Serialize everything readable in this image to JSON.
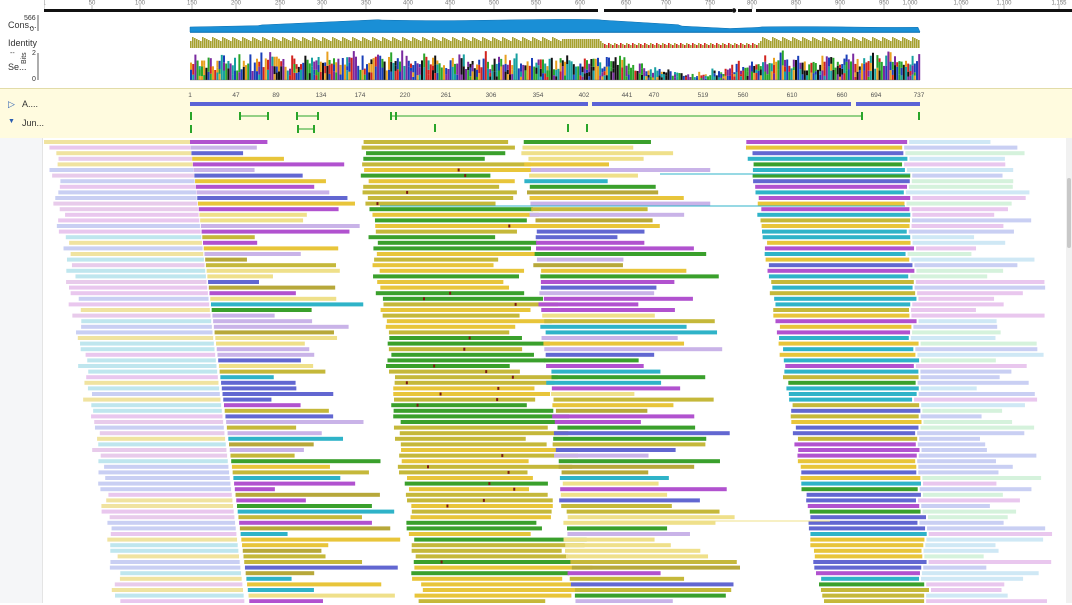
{
  "ruler": {
    "ticks": [
      "1",
      "50",
      "100",
      "150",
      "200",
      "250",
      "300",
      "350",
      "400",
      "450",
      "500",
      "550",
      "600",
      "650",
      "700",
      "750",
      "800",
      "850",
      "900",
      "950",
      "1,000",
      "1,050",
      "1,100",
      "1,155"
    ]
  },
  "tracks": {
    "consensus": {
      "label": "Cons...",
      "max": "566",
      "min": "0"
    },
    "identity": {
      "label": "Identity",
      "dash": "--"
    },
    "sequence_logo": {
      "label": "Se...",
      "unit": "Bits",
      "max": "2",
      "min": "0"
    }
  },
  "annotations": {
    "rows": [
      {
        "label": "A....",
        "toggle": "expand"
      },
      {
        "label": "Jun...",
        "toggle": "collapse"
      }
    ],
    "positions": [
      "1",
      "47",
      "89",
      "134",
      "174",
      "220",
      "261",
      "306",
      "354",
      "402",
      "441",
      "470",
      "519",
      "560",
      "610",
      "660",
      "694",
      "737"
    ]
  },
  "colors": {
    "coverage": "#1a8fd6",
    "identity_olive": "#a6a12e",
    "identity_red": "#d1241f",
    "annotation_blue": "#5b63d6",
    "annotation_green": "#2aa52a",
    "yellow": "#e8c53a",
    "olive": "#c5b83a",
    "green": "#3aa02c",
    "purple": "#b152cf",
    "indigo": "#6267d1",
    "teal": "#2fb3c8",
    "lavender": "#c9b3e8"
  }
}
